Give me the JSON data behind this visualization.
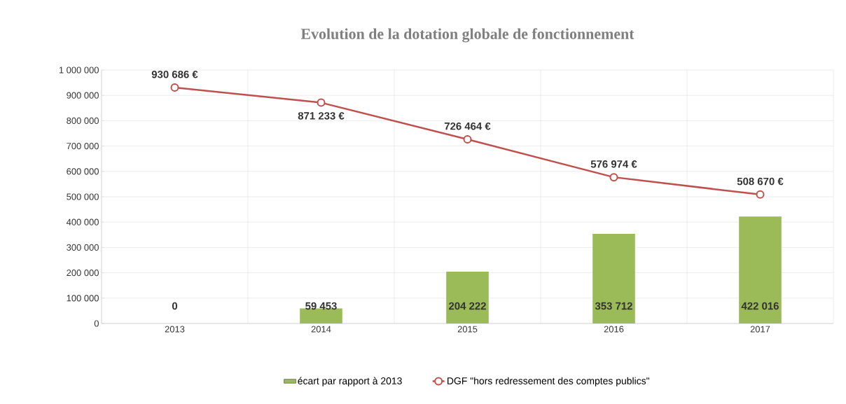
{
  "chart_data": {
    "type": "bar",
    "title": "Evolution de la dotation globale de fonctionnement",
    "categories": [
      "2013",
      "2014",
      "2015",
      "2016",
      "2017"
    ],
    "series": [
      {
        "name": "écart par rapport à 2013",
        "color": "#9bbb59",
        "values": [
          0,
          59453,
          204222,
          353712,
          422016
        ],
        "value_labels": [
          "0",
          "59 453",
          "204 222",
          "353 712",
          "422 016"
        ]
      },
      {
        "name": "DGF \"hors redressement des comptes publics\"",
        "type": "line",
        "color": "#c0504d",
        "marker": "circle",
        "values": [
          930686,
          871233,
          726464,
          576974,
          508670
        ],
        "value_labels": [
          "930 686 €",
          "871 233 €",
          "726 464 €",
          "576 974 €",
          "508 670 €"
        ]
      }
    ],
    "ylim": [
      0,
      1000000
    ],
    "yticks": [
      0,
      {
        "value": 100000,
        "label": "100 000"
      },
      {
        "value": 200000,
        "label": "200 000"
      },
      {
        "value": 300000,
        "label": "300 000"
      },
      {
        "value": 400000,
        "label": "400 000"
      },
      {
        "value": 500000,
        "label": "500 000"
      },
      {
        "value": 600000,
        "label": "600 000"
      },
      {
        "value": 700000,
        "label": "700 000"
      },
      {
        "value": 800000,
        "label": "800 000"
      },
      {
        "value": 900000,
        "label": "900 000"
      },
      {
        "value": 1000000,
        "label": "1 000 000"
      }
    ],
    "grid": true,
    "legend": "bottom"
  }
}
